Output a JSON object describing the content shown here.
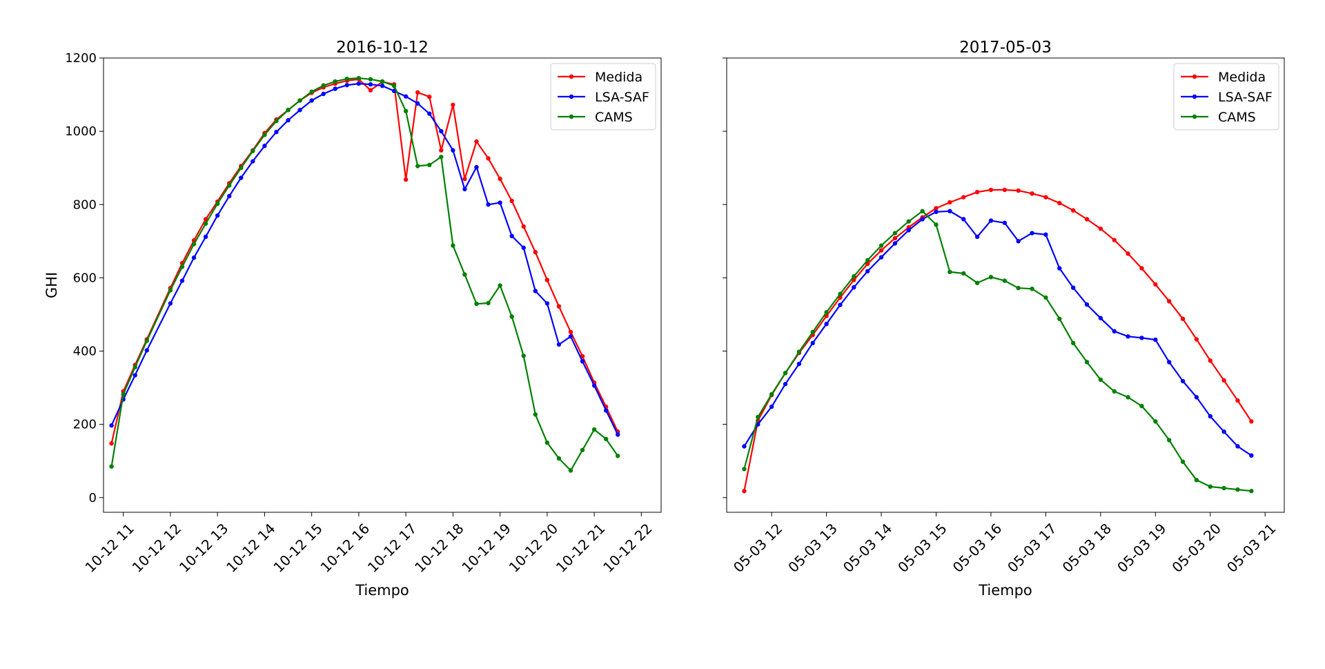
{
  "chart_data": [
    {
      "type": "line",
      "title": "2016-10-12",
      "xlabel": "Tiempo",
      "ylabel": "GHI",
      "xlim": [
        10.58,
        22.42
      ],
      "ylim": [
        -40,
        1200
      ],
      "xticks": [
        11,
        12,
        13,
        14,
        15,
        16,
        17,
        18,
        19,
        20,
        21,
        22
      ],
      "xtick_labels": [
        "10-12 11",
        "10-12 12",
        "10-12 13",
        "10-12 14",
        "10-12 15",
        "10-12 16",
        "10-12 17",
        "10-12 18",
        "10-12 19",
        "10-12 20",
        "10-12 21",
        "10-12 22"
      ],
      "yticks": [
        0,
        200,
        400,
        600,
        800,
        1000,
        1200
      ],
      "ytick_labels": [
        "0",
        "200",
        "400",
        "600",
        "800",
        "1000",
        "1200"
      ],
      "legend_position": "top-right",
      "grid": false,
      "x": [
        10.75,
        11.0,
        11.25,
        11.5,
        12.0,
        12.25,
        12.5,
        12.75,
        13.0,
        13.25,
        13.5,
        13.75,
        14.0,
        14.25,
        14.5,
        14.75,
        15.0,
        15.25,
        15.5,
        15.75,
        16.0,
        16.25,
        16.5,
        16.75,
        17.0,
        17.25,
        17.5,
        17.75,
        18.0,
        18.25,
        18.5,
        18.75,
        19.0,
        19.25,
        19.5,
        19.75,
        20.0,
        20.25,
        20.5,
        20.75,
        21.0,
        21.25,
        21.5
      ],
      "series": [
        {
          "name": "Medida",
          "color": "#ff0000",
          "values": [
            148,
            290,
            362,
            432,
            572,
            640,
            702,
            760,
            808,
            858,
            905,
            948,
            995,
            1032,
            1058,
            1084,
            1105,
            1120,
            1130,
            1138,
            1142,
            1112,
            1135,
            1128,
            868,
            1106,
            1094,
            948,
            1072,
            870,
            972,
            926,
            870,
            810,
            740,
            670,
            594,
            522,
            452,
            386,
            314,
            248,
            180
          ]
        },
        {
          "name": "LSA-SAF",
          "color": "#0000ff",
          "values": [
            197,
            268,
            334,
            402,
            530,
            592,
            655,
            712,
            770,
            823,
            873,
            918,
            960,
            998,
            1030,
            1058,
            1084,
            1102,
            1116,
            1126,
            1130,
            1128,
            1124,
            1110,
            1095,
            1076,
            1048,
            1000,
            948,
            842,
            902,
            800,
            805,
            714,
            682,
            564,
            530,
            418,
            440,
            372,
            306,
            238,
            172
          ]
        },
        {
          "name": "CAMS",
          "color": "#008000",
          "values": [
            85,
            282,
            356,
            428,
            566,
            630,
            692,
            748,
            802,
            852,
            900,
            946,
            990,
            1028,
            1058,
            1084,
            1108,
            1125,
            1136,
            1143,
            1145,
            1142,
            1136,
            1124,
            1055,
            905,
            908,
            930,
            688,
            609,
            529,
            531,
            579,
            494,
            387,
            227,
            150,
            107,
            74,
            130,
            186,
            160,
            114
          ]
        }
      ]
    },
    {
      "type": "line",
      "title": "2017-05-03",
      "xlabel": "Tiempo",
      "ylabel": "",
      "xlim": [
        11.18,
        21.35
      ],
      "ylim": [
        -40,
        1200
      ],
      "xticks": [
        12,
        13,
        14,
        15,
        16,
        17,
        18,
        19,
        20,
        21
      ],
      "xtick_labels": [
        "05-03 12",
        "05-03 13",
        "05-03 14",
        "05-03 15",
        "05-03 16",
        "05-03 17",
        "05-03 18",
        "05-03 19",
        "05-03 20",
        "05-03 21"
      ],
      "yticks": [
        0,
        200,
        400,
        600,
        800,
        1000,
        1200
      ],
      "ytick_labels": [
        "",
        "",
        "",
        "",
        "",
        "",
        ""
      ],
      "legend_position": "top-right",
      "grid": false,
      "x": [
        11.5,
        11.75,
        12.0,
        12.25,
        12.5,
        12.75,
        13.0,
        13.25,
        13.5,
        13.75,
        14.0,
        14.25,
        14.5,
        14.75,
        15.0,
        15.25,
        15.5,
        15.75,
        16.0,
        16.25,
        16.5,
        16.75,
        17.0,
        17.25,
        17.5,
        17.75,
        18.0,
        18.25,
        18.5,
        18.75,
        19.0,
        19.25,
        19.5,
        19.75,
        20.0,
        20.25,
        20.5,
        20.75
      ],
      "series": [
        {
          "name": "Medida",
          "color": "#ff0000",
          "values": [
            18,
            210,
            280,
            340,
            395,
            444,
            496,
            546,
            594,
            638,
            675,
            708,
            738,
            765,
            790,
            806,
            820,
            834,
            840,
            840,
            838,
            830,
            820,
            804,
            784,
            760,
            734,
            703,
            666,
            626,
            582,
            536,
            488,
            432,
            374,
            320,
            265,
            208
          ]
        },
        {
          "name": "LSA-SAF",
          "color": "#0000ff",
          "values": [
            140,
            200,
            248,
            310,
            365,
            422,
            474,
            526,
            574,
            618,
            656,
            694,
            730,
            760,
            780,
            782,
            760,
            712,
            756,
            750,
            700,
            722,
            718,
            626,
            573,
            527,
            490,
            454,
            440,
            436,
            431,
            370,
            318,
            274,
            222,
            180,
            140,
            115
          ]
        },
        {
          "name": "CAMS",
          "color": "#008000",
          "values": [
            78,
            220,
            282,
            340,
            398,
            452,
            506,
            556,
            604,
            648,
            688,
            722,
            754,
            782,
            745,
            616,
            612,
            586,
            602,
            592,
            572,
            570,
            546,
            488,
            422,
            370,
            322,
            290,
            274,
            250,
            208,
            157,
            98,
            48,
            30,
            26,
            22,
            18
          ]
        }
      ]
    }
  ]
}
